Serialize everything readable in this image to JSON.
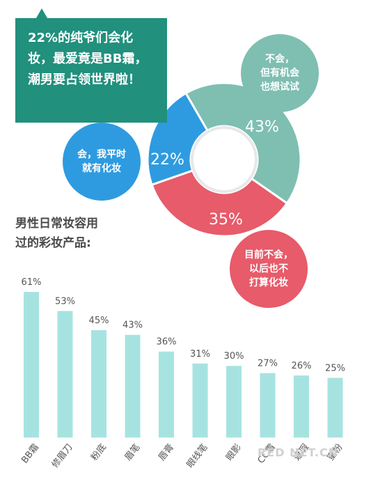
{
  "callout": {
    "text": "22%的纯爷们会化妆，最爱竟是BB霜，潮男要占领世界啦！"
  },
  "donut": {
    "segments": [
      {
        "label": "不会，\n但有机会\n也想试试",
        "value": 43,
        "display": "43%",
        "color": "#7ebfb2"
      },
      {
        "label": "目前不会，\n以后也不\n打算化妆",
        "value": 35,
        "display": "35%",
        "color": "#e75b6a"
      },
      {
        "label": "会，我平时\n就有化妆",
        "value": 22,
        "display": "22%",
        "color": "#2e9be0"
      }
    ]
  },
  "subtitle": "男性日常妆容用\n过的彩妆产品:",
  "watermark": "RED NET.CN",
  "chart_data": {
    "type": "bar",
    "title": "男性日常妆容用过的彩妆产品:",
    "categories": [
      "BB霜",
      "修眉刀",
      "粉底",
      "眉笔",
      "唇膏",
      "眼线笔",
      "眼影",
      "CC霜",
      "遮瑕",
      "蜜粉"
    ],
    "values": [
      61,
      53,
      45,
      43,
      36,
      31,
      30,
      27,
      26,
      25
    ],
    "value_labels": [
      "61%",
      "53%",
      "45%",
      "43%",
      "36%",
      "31%",
      "30%",
      "27%",
      "26%",
      "25%"
    ],
    "bar_color": "#a6e3e0",
    "ylim": [
      0,
      61
    ]
  }
}
